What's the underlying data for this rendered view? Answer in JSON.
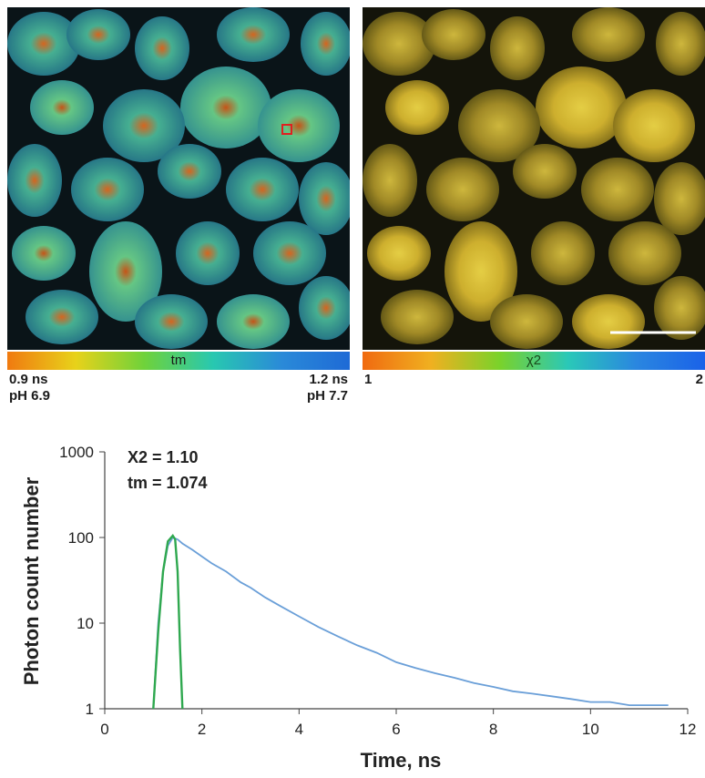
{
  "left_panel": {
    "colorbar_title": "tm",
    "min_line1": "0.9 ns",
    "min_line2": "pH 6.9",
    "max_line1": "1.2 ns",
    "max_line2": "pH 7.7",
    "colors": [
      "#f07a10",
      "#e8d21a",
      "#6fd23a",
      "#28c8b0",
      "#2a8ad8",
      "#1e6ad6"
    ]
  },
  "right_panel": {
    "colorbar_title": "χ2",
    "min_label": "1",
    "max_label": "2",
    "colors": [
      "#f06a10",
      "#f0b020",
      "#7ad22a",
      "#2ac8b8",
      "#2a86e0",
      "#1a62e8"
    ]
  },
  "chart_data": {
    "type": "line",
    "title": "",
    "xlabel": "Time, ns",
    "ylabel": "Photon count number",
    "xlim": [
      0,
      12
    ],
    "ylim": [
      1,
      1000
    ],
    "yscale": "log",
    "xticks": [
      "0",
      "2",
      "4",
      "6",
      "8",
      "10",
      "12"
    ],
    "yticks": [
      "1",
      "10",
      "100",
      "1000"
    ],
    "annotations": [
      "X2 = 1.10",
      "tm = 1.074"
    ],
    "series": [
      {
        "color": "#6a9fd8",
        "x": [
          1.0,
          1.1,
          1.2,
          1.3,
          1.4,
          1.5,
          1.6,
          1.8,
          2.0,
          2.2,
          2.5,
          2.8,
          3.0,
          3.3,
          3.6,
          4.0,
          4.4,
          4.8,
          5.2,
          5.6,
          6.0,
          6.4,
          6.8,
          7.2,
          7.6,
          8.0,
          8.4,
          8.8,
          9.2,
          9.6,
          10.0,
          10.4,
          10.8,
          11.2,
          11.6
        ],
        "y": [
          1,
          10,
          40,
          80,
          100,
          95,
          85,
          72,
          60,
          50,
          40,
          30,
          26,
          20,
          16,
          12,
          9,
          7,
          5.5,
          4.5,
          3.5,
          3,
          2.6,
          2.3,
          2,
          1.8,
          1.6,
          1.5,
          1.4,
          1.3,
          1.2,
          1.2,
          1.1,
          1.1,
          1.1
        ]
      },
      {
        "color": "#2fa84f",
        "x": [
          1.0,
          1.1,
          1.2,
          1.3,
          1.4,
          1.45,
          1.5,
          1.55,
          1.6
        ],
        "y": [
          1,
          8,
          40,
          90,
          105,
          95,
          40,
          5,
          1
        ]
      }
    ]
  }
}
